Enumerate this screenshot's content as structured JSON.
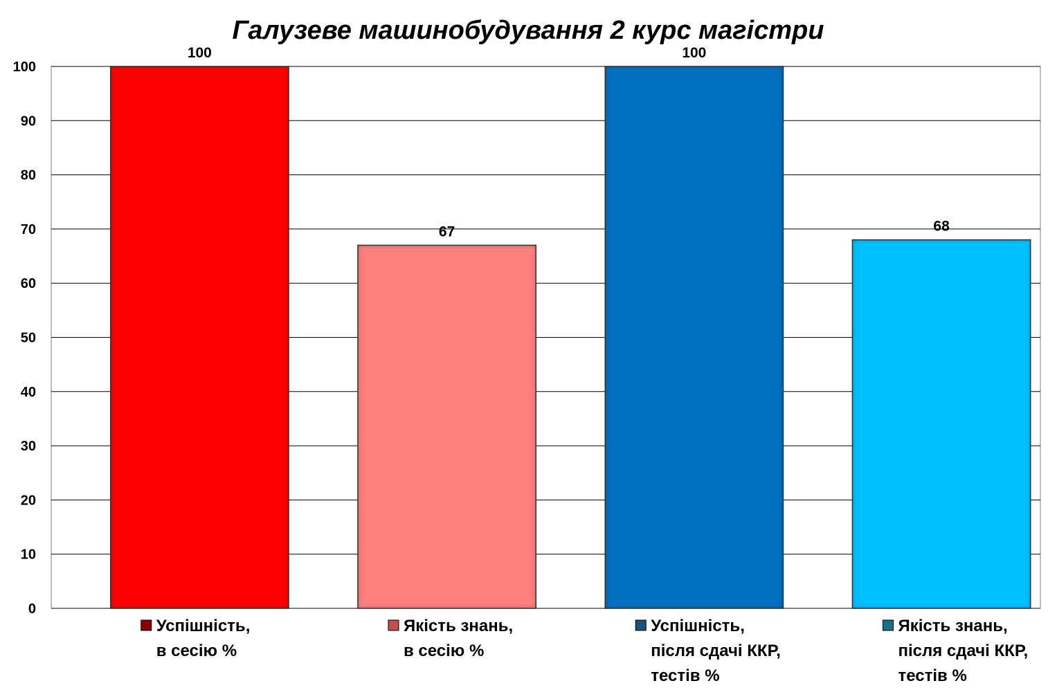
{
  "chart_data": {
    "type": "bar",
    "title": "Галузеве машинобудування 2 курс магістри",
    "xlabel": "",
    "ylabel": "",
    "ylim": [
      0,
      100
    ],
    "yticks": [
      0,
      10,
      20,
      30,
      40,
      50,
      60,
      70,
      80,
      90,
      100
    ],
    "grid": true,
    "legend_position": "bottom",
    "categories": [
      "Успішність, в сесію %",
      "Якість знань, в сесію %",
      "Успішність, після сдачі ККР, тестів %",
      "Якість знань, після сдачі ККР, тестів %"
    ],
    "values": [
      100,
      67,
      100,
      68
    ],
    "data_labels": [
      "100",
      "67",
      "100",
      "68"
    ],
    "colors": [
      "#FF0000",
      "#FF7F7F",
      "#0070C0",
      "#00BFFF"
    ],
    "marker_colors": [
      "#8B0000",
      "#C0504D",
      "#1F4E79",
      "#1B6E8C"
    ],
    "legend": [
      {
        "lines": [
          "Успішність,",
          "в сесію %"
        ]
      },
      {
        "lines": [
          "Якість знань,",
          "в сесію %"
        ]
      },
      {
        "lines": [
          "Успішність,",
          "після сдачі ККР,",
          "тестів %"
        ]
      },
      {
        "lines": [
          "Якість знань,",
          "після сдачі ККР,",
          "тестів %"
        ]
      }
    ]
  }
}
